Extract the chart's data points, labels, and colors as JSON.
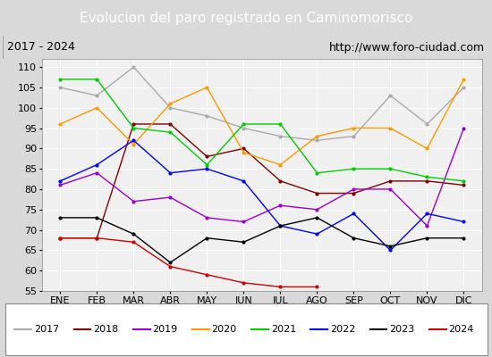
{
  "title": "Evolucion del paro registrado en Caminomorisco",
  "subtitle_left": "2017 - 2024",
  "subtitle_right": "http://www.foro-ciudad.com",
  "months": [
    "ENE",
    "FEB",
    "MAR",
    "ABR",
    "MAY",
    "JUN",
    "JUL",
    "AGO",
    "SEP",
    "OCT",
    "NOV",
    "DIC"
  ],
  "series": {
    "2017": {
      "color": "#aaaaaa",
      "data": [
        105,
        103,
        110,
        100,
        98,
        95,
        93,
        92,
        93,
        103,
        96,
        105
      ]
    },
    "2018": {
      "color": "#800000",
      "data": [
        68,
        68,
        96,
        96,
        88,
        90,
        82,
        79,
        79,
        82,
        82,
        81
      ]
    },
    "2019": {
      "color": "#9900cc",
      "data": [
        81,
        84,
        77,
        78,
        73,
        72,
        76,
        75,
        80,
        80,
        71,
        95
      ]
    },
    "2020": {
      "color": "#ff9900",
      "data": [
        96,
        100,
        91,
        101,
        105,
        89,
        86,
        93,
        95,
        95,
        90,
        107
      ]
    },
    "2021": {
      "color": "#00cc00",
      "data": [
        107,
        107,
        95,
        94,
        86,
        96,
        96,
        84,
        85,
        85,
        83,
        82
      ]
    },
    "2022": {
      "color": "#0000ff",
      "data": [
        82,
        86,
        92,
        84,
        85,
        82,
        71,
        69,
        74,
        65,
        74,
        72
      ]
    },
    "2023": {
      "color": "#000000",
      "data": [
        73,
        73,
        69,
        62,
        68,
        67,
        71,
        73,
        68,
        66,
        68,
        68
      ]
    },
    "2024": {
      "color": "#cc0000",
      "data": [
        68,
        68,
        67,
        61,
        59,
        57,
        56,
        56,
        null,
        null,
        null,
        null
      ]
    }
  },
  "ylim": [
    55,
    112
  ],
  "yticks": [
    55,
    60,
    65,
    70,
    75,
    80,
    85,
    90,
    95,
    100,
    105,
    110
  ],
  "bg_title": "#4472c4",
  "bg_plot": "#f0f0f0",
  "bg_header": "#d9d9d9",
  "grid_color": "#ffffff",
  "title_color": "#ffffff",
  "title_fontsize": 11,
  "subtitle_fontsize": 9,
  "legend_fontsize": 8,
  "tick_fontsize": 8
}
